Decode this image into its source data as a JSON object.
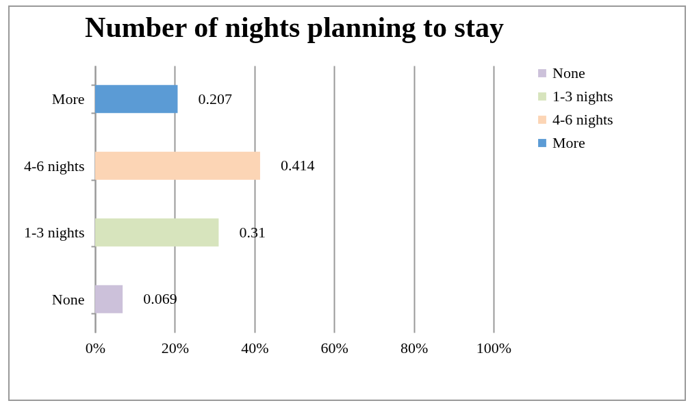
{
  "chart_data": {
    "type": "bar",
    "orientation": "horizontal",
    "title": "Number of nights planning to stay",
    "categories": [
      "More",
      "4-6 nights",
      "1-3 nights",
      "None"
    ],
    "series": [
      {
        "name": "None",
        "color": "#ccc1da",
        "values": [
          null,
          null,
          null,
          0.069
        ]
      },
      {
        "name": "1-3 nights",
        "color": "#d7e4bd",
        "values": [
          null,
          null,
          0.31,
          null
        ]
      },
      {
        "name": "4-6 nights",
        "color": "#fcd5b5",
        "values": [
          null,
          0.414,
          null,
          null
        ]
      },
      {
        "name": "More",
        "color": "#5b9bd5",
        "values": [
          0.207,
          null,
          null,
          null
        ]
      }
    ],
    "xlim": [
      0,
      1
    ],
    "xticks": [
      {
        "value": 0,
        "label": "0%"
      },
      {
        "value": 0.2,
        "label": "20%"
      },
      {
        "value": 0.4,
        "label": "40%"
      },
      {
        "value": 0.6,
        "label": "60%"
      },
      {
        "value": 0.8,
        "label": "80%"
      },
      {
        "value": 1,
        "label": "100%"
      }
    ],
    "grid": "x",
    "legend": "right",
    "data_labels": true
  }
}
